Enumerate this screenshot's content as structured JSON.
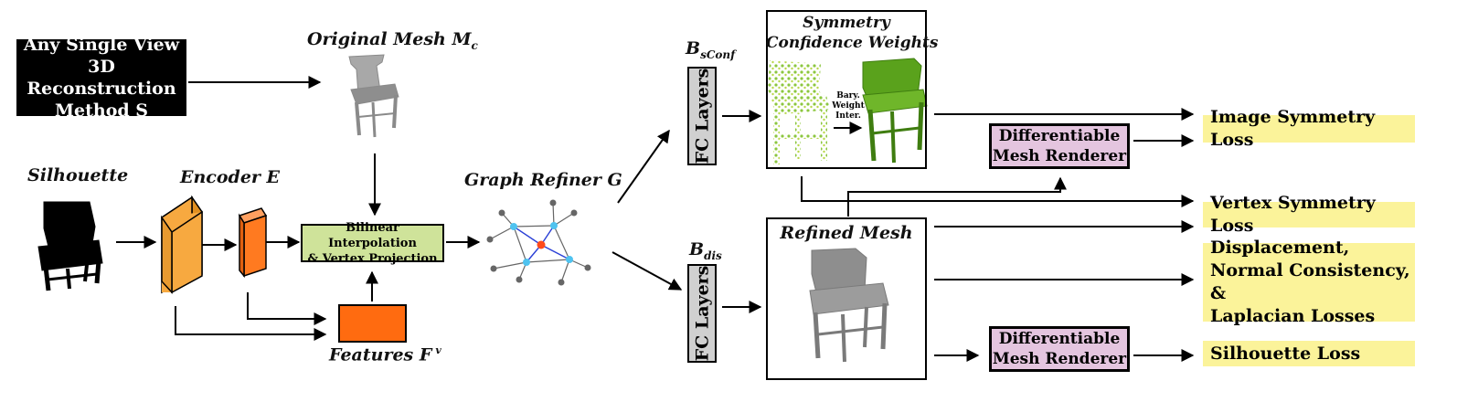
{
  "nodes": {
    "method": [
      "Any Single View",
      "3D Reconstruction",
      "Method S"
    ],
    "original_mesh": "Original Mesh M",
    "original_mesh_sub": "c",
    "silhouette": "Silhouette",
    "encoder": "Encoder E",
    "bilinear": [
      "Bilinear Interpolation",
      "& Vertex Projection"
    ],
    "features": "Features F",
    "features_sup": "v",
    "graph_refiner": "Graph Refiner G",
    "b_sconf": "B",
    "b_sconf_sub": "sConf",
    "b_dis": "B",
    "b_dis_sub": "dis",
    "fc_layers_top": "FC Layers",
    "fc_layers_bottom": "FC Layers",
    "symmetry_confidence": [
      "Symmetry",
      "Confidence Weights"
    ],
    "bary": [
      "Bary.",
      "Weight",
      "Inter."
    ],
    "refined_mesh": "Refined Mesh",
    "renderer_top": [
      "Differentiable",
      "Mesh Renderer"
    ],
    "renderer_bottom": [
      "Differentiable",
      "Mesh Renderer"
    ]
  },
  "losses": {
    "image_symmetry": "Image Symmetry Loss",
    "vertex_symmetry": "Vertex Symmetry Loss",
    "regularizers": [
      "Displacement,",
      "Normal Consistency, &",
      "Laplacian Losses"
    ],
    "silhouette": "Silhouette Loss"
  },
  "colors": {
    "encoder_orange": "#f7a940",
    "features_orange": "#ff6b10",
    "bilinear_green": "#cfe39a",
    "renderer_pink": "#e4c5df",
    "fc_gray": "#d0d0d0",
    "loss_yellow": "#fbf39a",
    "graph_node_cyan": "#4fc3f0",
    "graph_node_red": "#ff4a1a",
    "graph_edge_blue": "#2a3fd6",
    "pointcloud_green": "#8cc63f",
    "mesh_gray": "#8a8a8a"
  },
  "icons": {
    "silhouette_image": "chair-silhouette-icon",
    "original_mesh_image": "gray-chair-mesh-icon",
    "pointcloud_image": "green-pointcloud-chair-icon",
    "green_mesh_image": "green-chair-mesh-icon",
    "refined_mesh_image": "refined-chair-mesh-icon"
  }
}
